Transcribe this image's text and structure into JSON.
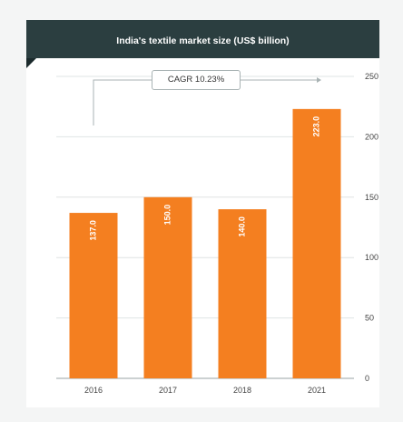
{
  "title": "India's textile market size (US$ billion)",
  "annotation": "CAGR 10.23%",
  "colors": {
    "bar": "#f47f20",
    "header": "#2b3e40",
    "grid": "#dfe4e4"
  },
  "chart_data": {
    "type": "bar",
    "title": "India's textile market size (US$ billion)",
    "categories": [
      "2016",
      "2017",
      "2018",
      "2021"
    ],
    "values": [
      137.0,
      150.0,
      140.0,
      223.0
    ],
    "value_labels": [
      "137.0",
      "150.0",
      "140.0",
      "223.0"
    ],
    "ylim": [
      0,
      250
    ],
    "yticks": [
      0,
      50,
      100,
      150,
      200,
      250
    ],
    "ytick_labels": [
      "0",
      "50",
      "100",
      "150",
      "200",
      "250"
    ],
    "y_axis_side": "right",
    "grid": true,
    "xlabel": "",
    "ylabel": ""
  }
}
